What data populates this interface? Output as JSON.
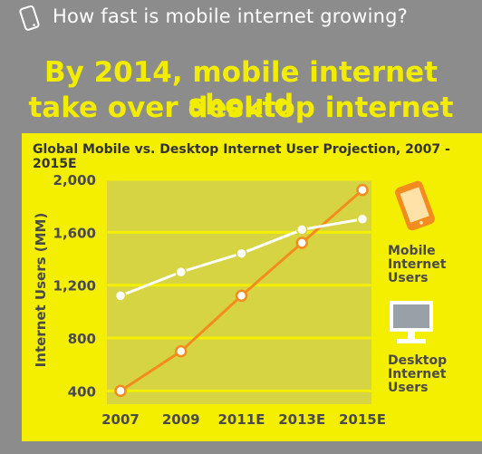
{
  "header": {
    "title": "How fast is mobile internet growing?",
    "icon": "phone-icon"
  },
  "headline": {
    "line1": "By 2014, mobile internet should",
    "line2": "take over desktop internet usage"
  },
  "colors": {
    "background": "#8c8c8c",
    "panel": "#f4ee00",
    "plot_area": "#d7d443",
    "headline": "#f2ec00",
    "mobile_series": "#f28c1f",
    "desktop_series": "#ffffff"
  },
  "legend": {
    "mobile": [
      "Mobile",
      "Internet",
      "Users"
    ],
    "desktop": [
      "Desktop",
      "Internet",
      "Users"
    ]
  },
  "chart_data": {
    "type": "line",
    "title": "Global Mobile vs. Desktop Internet User Projection, 2007 - 2015E",
    "xlabel": "",
    "ylabel": "Internet Users (MM)",
    "ylim": [
      300,
      2000
    ],
    "yticks": [
      400,
      800,
      1200,
      1600,
      2000
    ],
    "ytick_labels": [
      "400",
      "800",
      "1,200",
      "1,600",
      "2,000"
    ],
    "categories": [
      "2007",
      "2009",
      "2011E",
      "2013E",
      "2015E"
    ],
    "grid": true,
    "legend_position": "right",
    "series": [
      {
        "name": "Mobile Internet Users",
        "color": "#f28c1f",
        "values": [
          400,
          700,
          1120,
          1520,
          1920
        ]
      },
      {
        "name": "Desktop Internet Users",
        "color": "#ffffff",
        "values": [
          1120,
          1300,
          1440,
          1620,
          1700
        ]
      }
    ]
  }
}
